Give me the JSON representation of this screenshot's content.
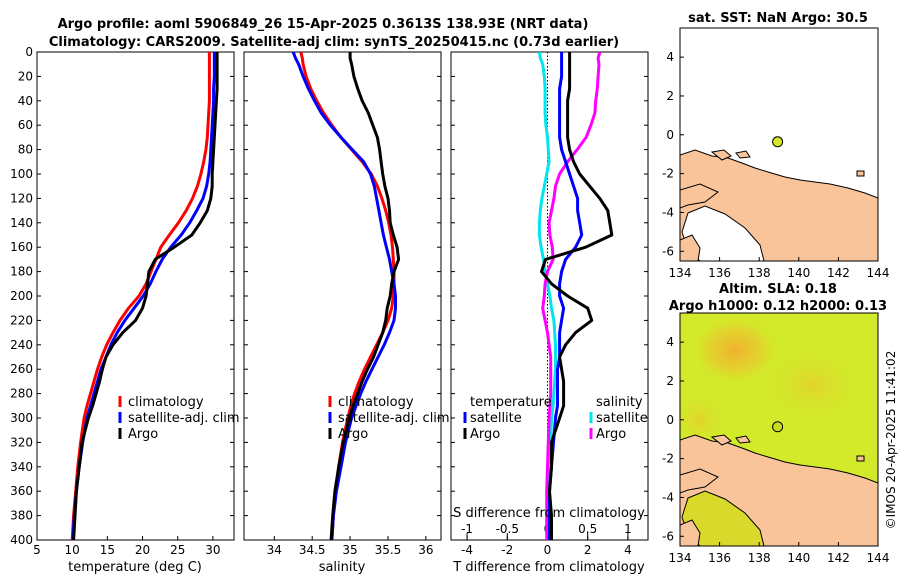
{
  "title_line1": "Argo profile: aoml 5906849_26 15-Apr-2025 0.3613S 138.93E (NRT data)",
  "title_line2": "Climatology: CARS2009. Satellite-adj clim: synTS_20250415.nc (0.73d earlier)",
  "watermark": "©IMOS 20-Apr-2025 11:41:02",
  "colors": {
    "climatology": "#ff0000",
    "satellite": "#0000ff",
    "argo": "#000000",
    "sal_sat": "#00e5ee",
    "sal_argo": "#ff00ff",
    "land": "#f9c49a",
    "sla_field": "#d2ea2a"
  },
  "chart_data": [
    {
      "type": "line",
      "name": "temperature-panel",
      "xlabel": "temperature (deg C)",
      "xlim": [
        5,
        33
      ],
      "ylim": [
        400,
        0
      ],
      "xticks": [
        "5",
        "10",
        "15",
        "20",
        "25",
        "30"
      ],
      "yticks": [
        "0",
        "20",
        "40",
        "60",
        "80",
        "100",
        "120",
        "140",
        "160",
        "180",
        "200",
        "220",
        "240",
        "260",
        "280",
        "300",
        "320",
        "340",
        "360",
        "380",
        "400"
      ],
      "legend": [
        "climatology",
        "satellite-adj. clim",
        "Argo"
      ],
      "depth": [
        0,
        5,
        10,
        20,
        30,
        40,
        50,
        60,
        70,
        80,
        90,
        100,
        110,
        120,
        130,
        140,
        150,
        160,
        170,
        180,
        190,
        200,
        210,
        220,
        230,
        240,
        250,
        260,
        270,
        280,
        290,
        300,
        320,
        340,
        360,
        380,
        400
      ],
      "series": [
        {
          "name": "climatology",
          "values": [
            29.5,
            29.5,
            29.5,
            29.5,
            29.5,
            29.5,
            29.4,
            29.3,
            29.2,
            29.0,
            28.7,
            28.3,
            27.8,
            27.1,
            26.2,
            25.1,
            23.8,
            22.6,
            21.9,
            21.2,
            20.5,
            19.5,
            18.0,
            16.8,
            15.8,
            14.9,
            14.2,
            13.6,
            13.1,
            12.6,
            12.1,
            11.7,
            11.2,
            10.8,
            10.5,
            10.2,
            10.0
          ]
        },
        {
          "name": "satellite",
          "values": [
            30.2,
            30.2,
            30.2,
            30.2,
            30.1,
            30.1,
            30.0,
            29.9,
            29.8,
            29.7,
            29.6,
            29.4,
            29.1,
            28.6,
            27.7,
            26.7,
            25.5,
            24.0,
            22.8,
            21.9,
            21.1,
            20.1,
            18.8,
            17.5,
            16.4,
            15.5,
            14.8,
            14.1,
            13.6,
            13.1,
            12.6,
            12.1,
            11.5,
            11.0,
            10.6,
            10.3,
            10.1
          ]
        },
        {
          "name": "Argo",
          "values": [
            30.6,
            30.6,
            30.6,
            30.6,
            30.6,
            30.5,
            30.4,
            30.3,
            30.2,
            30.1,
            30.0,
            29.9,
            29.9,
            29.7,
            29.2,
            28.2,
            27.0,
            24.5,
            21.8,
            20.9,
            20.7,
            20.5,
            20.0,
            19.0,
            17.2,
            15.8,
            14.8,
            14.3,
            13.9,
            13.4,
            12.9,
            12.3,
            11.4,
            11.0,
            10.6,
            10.4,
            10.2
          ]
        }
      ]
    },
    {
      "type": "line",
      "name": "salinity-panel",
      "xlabel": "salinity",
      "xlim": [
        33.6,
        36.2
      ],
      "ylim": [
        400,
        0
      ],
      "xticks": [
        "34",
        "34.5",
        "35",
        "35.5",
        "36"
      ],
      "legend": [
        "climatology",
        "satellite-adj. clim",
        "Argo"
      ],
      "depth": [
        0,
        5,
        10,
        20,
        30,
        40,
        50,
        60,
        70,
        80,
        90,
        100,
        110,
        120,
        130,
        140,
        150,
        160,
        170,
        180,
        190,
        200,
        210,
        220,
        230,
        240,
        250,
        260,
        270,
        280,
        290,
        300,
        320,
        340,
        360,
        380,
        400
      ],
      "series": [
        {
          "name": "climatology",
          "values": [
            34.35,
            34.37,
            34.38,
            34.42,
            34.48,
            34.56,
            34.65,
            34.76,
            34.88,
            35.02,
            35.16,
            35.28,
            35.36,
            35.42,
            35.47,
            35.51,
            35.54,
            35.56,
            35.57,
            35.58,
            35.58,
            35.57,
            35.55,
            35.5,
            35.43,
            35.35,
            35.27,
            35.19,
            35.12,
            35.06,
            35.01,
            34.97,
            34.9,
            34.85,
            34.81,
            34.78,
            34.76
          ]
        },
        {
          "name": "satellite",
          "values": [
            34.25,
            34.28,
            34.32,
            34.38,
            34.45,
            34.53,
            34.62,
            34.74,
            34.88,
            35.03,
            35.18,
            35.27,
            35.32,
            35.35,
            35.38,
            35.41,
            35.44,
            35.48,
            35.52,
            35.55,
            35.58,
            35.6,
            35.6,
            35.58,
            35.52,
            35.45,
            35.37,
            35.29,
            35.21,
            35.14,
            35.08,
            35.02,
            34.94,
            34.88,
            34.82,
            34.78,
            34.76
          ]
        },
        {
          "name": "Argo",
          "values": [
            35.0,
            35.0,
            35.02,
            35.05,
            35.1,
            35.16,
            35.24,
            35.3,
            35.36,
            35.39,
            35.41,
            35.43,
            35.46,
            35.5,
            35.52,
            35.53,
            35.57,
            35.62,
            35.64,
            35.58,
            35.55,
            35.53,
            35.49,
            35.47,
            35.43,
            35.37,
            35.31,
            35.23,
            35.16,
            35.1,
            35.04,
            34.99,
            34.91,
            34.85,
            34.8,
            34.77,
            34.75
          ]
        }
      ]
    },
    {
      "type": "line",
      "name": "difference-panel",
      "xlabel": "T difference from climatology",
      "x2label": "S difference from climatology",
      "xlim": [
        -4.8,
        5.0
      ],
      "x2lim": [
        -1.2,
        1.25
      ],
      "ylim": [
        400,
        0
      ],
      "xticks": [
        "-4",
        "-2",
        "0",
        "2",
        "4"
      ],
      "x2ticks": [
        "-1",
        "-0.5",
        "0",
        "0.5",
        "1"
      ],
      "legend_left_title": "temperature",
      "legend_right_title": "salinity",
      "legend_left": [
        "satellite",
        "Argo"
      ],
      "legend_right": [
        "satellite",
        "Argo"
      ],
      "depth": [
        0,
        5,
        10,
        20,
        30,
        40,
        50,
        60,
        70,
        80,
        90,
        100,
        110,
        120,
        130,
        140,
        150,
        160,
        170,
        180,
        190,
        200,
        210,
        220,
        230,
        240,
        250,
        260,
        270,
        280,
        290,
        300,
        320,
        340,
        360,
        380,
        400
      ],
      "series": [
        {
          "name": "T satellite",
          "axis": "T",
          "values": [
            0.7,
            0.7,
            0.7,
            0.7,
            0.6,
            0.6,
            0.6,
            0.6,
            0.6,
            0.7,
            0.9,
            1.1,
            1.3,
            1.5,
            1.5,
            1.6,
            1.7,
            1.4,
            0.9,
            0.7,
            0.6,
            0.6,
            0.8,
            0.7,
            0.6,
            0.6,
            0.6,
            0.5,
            0.5,
            0.5,
            0.5,
            0.4,
            0.3,
            0.2,
            0.1,
            0.1,
            0.1
          ]
        },
        {
          "name": "T Argo",
          "axis": "T",
          "values": [
            1.1,
            1.1,
            1.1,
            1.1,
            1.1,
            1.0,
            1.0,
            1.0,
            1.0,
            1.1,
            1.3,
            1.6,
            2.1,
            2.6,
            3.0,
            3.1,
            3.2,
            1.9,
            -0.1,
            -0.3,
            0.2,
            1.0,
            2.0,
            2.2,
            1.4,
            0.9,
            0.6,
            0.7,
            0.8,
            0.8,
            0.8,
            0.6,
            0.2,
            0.2,
            0.1,
            0.2,
            0.2
          ]
        },
        {
          "name": "S satellite",
          "axis": "S",
          "values": [
            -0.1,
            -0.09,
            -0.06,
            -0.04,
            -0.03,
            -0.03,
            -0.03,
            -0.02,
            0.0,
            0.01,
            0.02,
            -0.01,
            -0.04,
            -0.07,
            -0.09,
            -0.1,
            -0.1,
            -0.08,
            -0.05,
            -0.03,
            0.0,
            0.03,
            0.05,
            0.08,
            0.09,
            0.1,
            0.1,
            0.1,
            0.09,
            0.08,
            0.07,
            0.05,
            0.04,
            0.03,
            0.01,
            0.0,
            0.0
          ]
        },
        {
          "name": "S Argo",
          "axis": "S",
          "values": [
            0.65,
            0.63,
            0.64,
            0.63,
            0.62,
            0.6,
            0.59,
            0.54,
            0.48,
            0.37,
            0.25,
            0.15,
            0.1,
            0.08,
            0.05,
            0.02,
            0.03,
            0.06,
            0.07,
            0.0,
            -0.03,
            -0.04,
            -0.06,
            -0.03,
            0.0,
            0.02,
            0.04,
            0.04,
            0.04,
            0.04,
            0.03,
            0.02,
            0.01,
            0.0,
            -0.01,
            -0.01,
            -0.01
          ]
        }
      ]
    },
    {
      "type": "map",
      "name": "sst-map",
      "title": "sat. SST: NaN Argo: 30.5",
      "xlim": [
        134,
        144
      ],
      "ylim": [
        -6.5,
        5.5
      ],
      "xticks": [
        "134",
        "136",
        "138",
        "140",
        "142",
        "144"
      ],
      "yticks": [
        "-6",
        "-4",
        "-2",
        "0",
        "2",
        "4"
      ],
      "marker": {
        "lon": 138.93,
        "lat": -0.36,
        "color": "#d6e628"
      }
    },
    {
      "type": "map",
      "name": "sla-map",
      "title_line1": "Altim. SLA: 0.18",
      "title_line2": "Argo h1000: 0.12 h2000: 0.13",
      "xlim": [
        134,
        144
      ],
      "ylim": [
        -6.5,
        5.5
      ],
      "xticks": [
        "134",
        "136",
        "138",
        "140",
        "142",
        "144"
      ],
      "yticks": [
        "-6",
        "-4",
        "-2",
        "0",
        "2",
        "4"
      ],
      "marker": {
        "lon": 138.93,
        "lat": -0.36,
        "color": "#c9dd20"
      }
    }
  ]
}
